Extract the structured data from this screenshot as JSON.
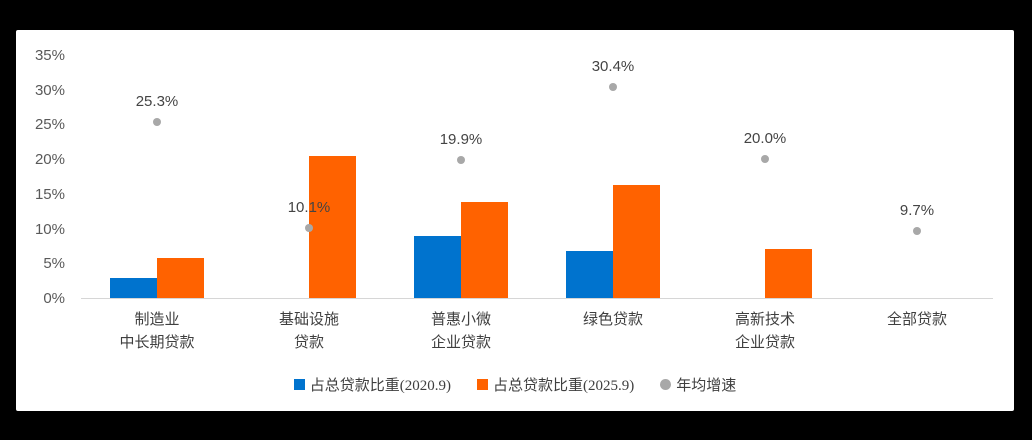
{
  "frame": {
    "background_color": "#000000",
    "card_color": "#ffffff"
  },
  "colors": {
    "bar_2020": "#0073CE",
    "bar_2025": "#FF6200",
    "cagr_dot": "#A8A8A8",
    "axis_line": "#d6d6d6",
    "tick_text": "#595959",
    "label_text": "#444444"
  },
  "legend": {
    "item_2020": "占总贷款比重(2020.9)",
    "item_2025": "占总贷款比重(2025.9)",
    "item_cagr": "年均增速"
  },
  "chart_data": {
    "type": "bar",
    "title": "",
    "xlabel": "",
    "ylabel": "",
    "categories": [
      "制造业\n中长期贷款",
      "基础设施\n贷款",
      "普惠小微\n企业贷款",
      "绿色贷款",
      "高新技术\n企业贷款",
      "全部贷款"
    ],
    "series": [
      {
        "name": "占总贷款比重(2020.9)",
        "type": "bar",
        "color": "#0073CE",
        "values": [
          2.9,
          null,
          8.9,
          6.8,
          null,
          null
        ]
      },
      {
        "name": "占总贷款比重(2025.9)",
        "type": "bar",
        "color": "#FF6200",
        "values": [
          5.7,
          20.5,
          13.8,
          16.3,
          7.0,
          null
        ]
      },
      {
        "name": "年均增速",
        "type": "scatter",
        "color": "#A8A8A8",
        "values": [
          25.3,
          10.1,
          19.9,
          30.4,
          20.0,
          9.7
        ],
        "point_labels": [
          "25.3%",
          "10.1%",
          "19.9%",
          "30.4%",
          "20.0%",
          "9.7%"
        ]
      }
    ],
    "y_axis": {
      "min": 0,
      "max": 35,
      "step": 5,
      "tick_labels": [
        "35%",
        "30%",
        "25%",
        "20%",
        "15%",
        "10%",
        "5%",
        "0%"
      ]
    },
    "grid": false,
    "legend_position": "bottom"
  }
}
